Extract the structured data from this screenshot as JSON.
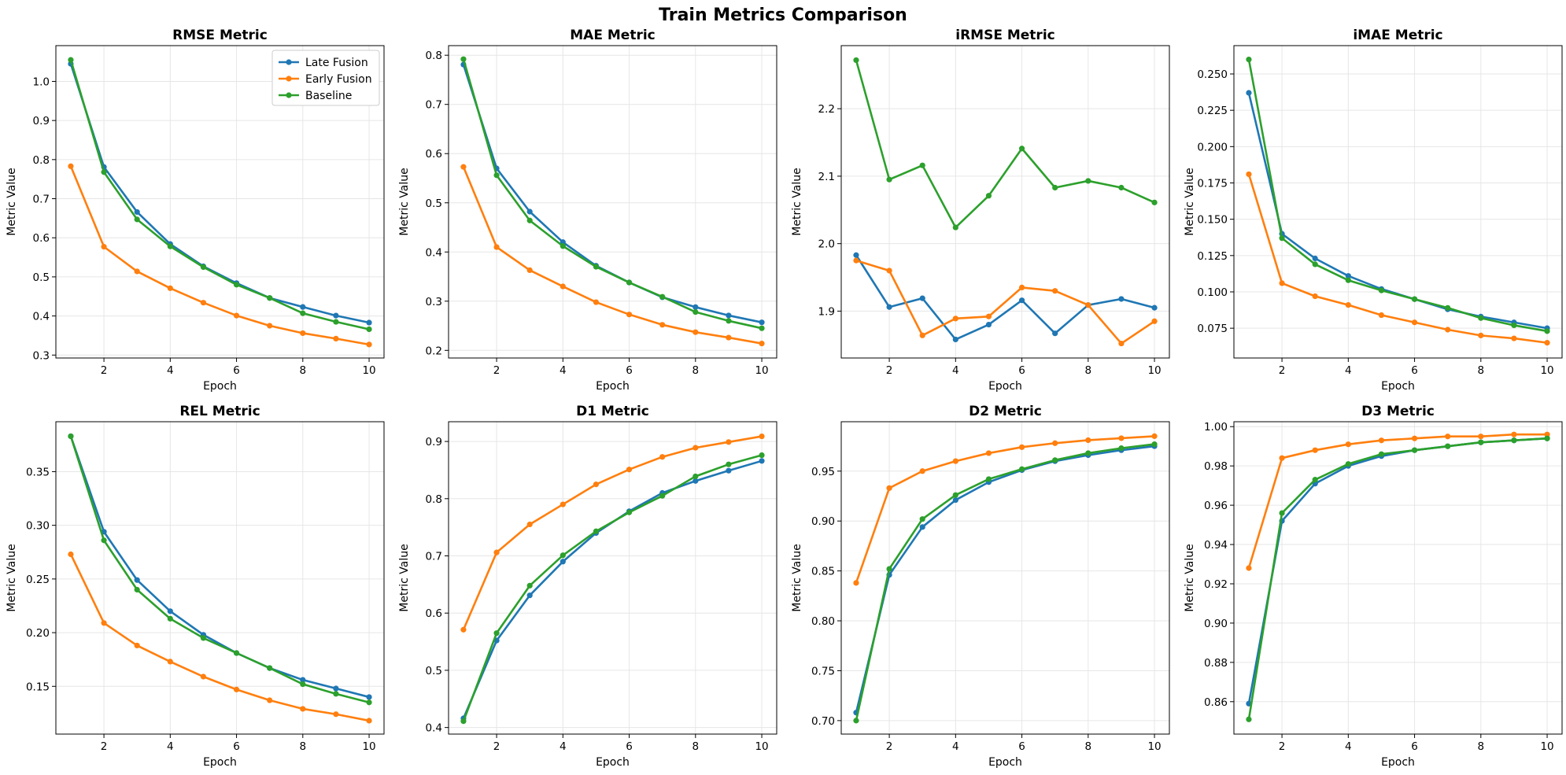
{
  "figure": {
    "title": "Train Metrics Comparison"
  },
  "legend": {
    "location": "upper right of first panel",
    "entries": [
      "Late Fusion",
      "Early Fusion",
      "Baseline"
    ]
  },
  "colors": {
    "Late Fusion": "#1f77b4",
    "Early Fusion": "#ff7f0e",
    "Baseline": "#2ca02c",
    "grid": "#e6e6e6"
  },
  "chart_data": [
    {
      "type": "line",
      "title": "RMSE Metric",
      "xlabel": "Epoch",
      "ylabel": "Metric Value",
      "x": [
        1,
        2,
        3,
        4,
        5,
        6,
        7,
        8,
        9,
        10
      ],
      "xlim": [
        0.55,
        10.45
      ],
      "xticks": [
        2,
        4,
        6,
        8,
        10
      ],
      "ylim": [
        0.2925,
        1.0915
      ],
      "yticks": [
        0.3,
        0.4,
        0.5,
        0.6,
        0.7,
        0.8,
        0.9,
        1.0
      ],
      "tick_decimals": 1,
      "grid": true,
      "series": [
        {
          "name": "Late Fusion",
          "values": [
            1.045,
            0.781,
            0.666,
            0.584,
            0.527,
            0.484,
            0.446,
            0.423,
            0.401,
            0.383
          ]
        },
        {
          "name": "Early Fusion",
          "values": [
            0.783,
            0.577,
            0.514,
            0.471,
            0.434,
            0.401,
            0.375,
            0.356,
            0.342,
            0.327
          ]
        },
        {
          "name": "Baseline",
          "values": [
            1.055,
            0.768,
            0.647,
            0.578,
            0.525,
            0.48,
            0.446,
            0.407,
            0.385,
            0.366
          ]
        }
      ]
    },
    {
      "type": "line",
      "title": "MAE Metric",
      "xlabel": "Epoch",
      "ylabel": "Metric Value",
      "x": [
        1,
        2,
        3,
        4,
        5,
        6,
        7,
        8,
        9,
        10
      ],
      "xlim": [
        0.55,
        10.45
      ],
      "xticks": [
        2,
        4,
        6,
        8,
        10
      ],
      "ylim": [
        0.1845,
        0.8195
      ],
      "yticks": [
        0.2,
        0.3,
        0.4,
        0.5,
        0.6,
        0.7,
        0.8
      ],
      "tick_decimals": 1,
      "grid": true,
      "series": [
        {
          "name": "Late Fusion",
          "values": [
            0.781,
            0.57,
            0.482,
            0.42,
            0.372,
            0.338,
            0.308,
            0.288,
            0.271,
            0.257
          ]
        },
        {
          "name": "Early Fusion",
          "values": [
            0.573,
            0.41,
            0.363,
            0.33,
            0.298,
            0.273,
            0.252,
            0.237,
            0.226,
            0.214
          ]
        },
        {
          "name": "Baseline",
          "values": [
            0.792,
            0.556,
            0.464,
            0.412,
            0.37,
            0.338,
            0.309,
            0.278,
            0.26,
            0.245
          ]
        }
      ]
    },
    {
      "type": "line",
      "title": "iRMSE Metric",
      "xlabel": "Epoch",
      "ylabel": "Metric Value",
      "x": [
        1,
        2,
        3,
        4,
        5,
        6,
        7,
        8,
        9,
        10
      ],
      "xlim": [
        0.55,
        10.45
      ],
      "xticks": [
        2,
        4,
        6,
        8,
        10
      ],
      "ylim": [
        1.8305,
        2.2935
      ],
      "yticks": [
        1.9,
        2.0,
        2.1,
        2.2
      ],
      "tick_decimals": 1,
      "grid": true,
      "series": [
        {
          "name": "Late Fusion",
          "values": [
            1.983,
            1.906,
            1.919,
            1.858,
            1.88,
            1.916,
            1.867,
            1.909,
            1.918,
            1.905
          ]
        },
        {
          "name": "Early Fusion",
          "values": [
            1.975,
            1.96,
            1.864,
            1.889,
            1.892,
            1.935,
            1.93,
            1.909,
            1.852,
            1.885
          ]
        },
        {
          "name": "Baseline",
          "values": [
            2.272,
            2.095,
            2.116,
            2.024,
            2.071,
            2.141,
            2.083,
            2.093,
            2.083,
            2.061
          ]
        }
      ]
    },
    {
      "type": "line",
      "title": "iMAE Metric",
      "xlabel": "Epoch",
      "ylabel": "Metric Value",
      "x": [
        1,
        2,
        3,
        4,
        5,
        6,
        7,
        8,
        9,
        10
      ],
      "xlim": [
        0.55,
        10.45
      ],
      "xticks": [
        2,
        4,
        6,
        8,
        10
      ],
      "ylim": [
        0.0545,
        0.2695
      ],
      "yticks": [
        0.075,
        0.1,
        0.125,
        0.15,
        0.175,
        0.2,
        0.225,
        0.25
      ],
      "tick_decimals": 3,
      "grid": true,
      "series": [
        {
          "name": "Late Fusion",
          "values": [
            0.237,
            0.14,
            0.123,
            0.111,
            0.102,
            0.095,
            0.088,
            0.083,
            0.079,
            0.075
          ]
        },
        {
          "name": "Early Fusion",
          "values": [
            0.181,
            0.106,
            0.097,
            0.091,
            0.084,
            0.079,
            0.074,
            0.07,
            0.068,
            0.065
          ]
        },
        {
          "name": "Baseline",
          "values": [
            0.26,
            0.137,
            0.119,
            0.108,
            0.101,
            0.095,
            0.089,
            0.082,
            0.077,
            0.073
          ]
        }
      ]
    },
    {
      "type": "line",
      "title": "REL Metric",
      "xlabel": "Epoch",
      "ylabel": "Metric Value",
      "x": [
        1,
        2,
        3,
        4,
        5,
        6,
        7,
        8,
        9,
        10
      ],
      "xlim": [
        0.55,
        10.45
      ],
      "xticks": [
        2,
        4,
        6,
        8,
        10
      ],
      "ylim": [
        0.1055,
        0.3965
      ],
      "yticks": [
        0.15,
        0.2,
        0.25,
        0.3,
        0.35
      ],
      "tick_decimals": 2,
      "grid": true,
      "series": [
        {
          "name": "Late Fusion",
          "values": [
            0.383,
            0.294,
            0.249,
            0.22,
            0.198,
            0.181,
            0.167,
            0.156,
            0.148,
            0.14
          ]
        },
        {
          "name": "Early Fusion",
          "values": [
            0.273,
            0.209,
            0.188,
            0.173,
            0.159,
            0.147,
            0.137,
            0.129,
            0.124,
            0.118
          ]
        },
        {
          "name": "Baseline",
          "values": [
            0.383,
            0.286,
            0.24,
            0.213,
            0.195,
            0.181,
            0.167,
            0.152,
            0.143,
            0.135
          ]
        }
      ]
    },
    {
      "type": "line",
      "title": "D1 Metric",
      "xlabel": "Epoch",
      "ylabel": "Metric Value",
      "x": [
        1,
        2,
        3,
        4,
        5,
        6,
        7,
        8,
        9,
        10
      ],
      "xlim": [
        0.55,
        10.45
      ],
      "xticks": [
        2,
        4,
        6,
        8,
        10
      ],
      "ylim": [
        0.3885,
        0.9345
      ],
      "yticks": [
        0.4,
        0.5,
        0.6,
        0.7,
        0.8,
        0.9
      ],
      "tick_decimals": 1,
      "grid": true,
      "series": [
        {
          "name": "Late Fusion",
          "values": [
            0.416,
            0.552,
            0.631,
            0.69,
            0.74,
            0.778,
            0.81,
            0.831,
            0.849,
            0.866
          ]
        },
        {
          "name": "Early Fusion",
          "values": [
            0.571,
            0.706,
            0.755,
            0.79,
            0.825,
            0.851,
            0.873,
            0.889,
            0.899,
            0.909
          ]
        },
        {
          "name": "Baseline",
          "values": [
            0.411,
            0.565,
            0.648,
            0.701,
            0.743,
            0.776,
            0.805,
            0.839,
            0.86,
            0.876
          ]
        }
      ]
    },
    {
      "type": "line",
      "title": "D2 Metric",
      "xlabel": "Epoch",
      "ylabel": "Metric Value",
      "x": [
        1,
        2,
        3,
        4,
        5,
        6,
        7,
        8,
        9,
        10
      ],
      "xlim": [
        0.55,
        10.45
      ],
      "xticks": [
        2,
        4,
        6,
        8,
        10
      ],
      "ylim": [
        0.6865,
        0.9995
      ],
      "yticks": [
        0.7,
        0.75,
        0.8,
        0.85,
        0.9,
        0.95
      ],
      "tick_decimals": 2,
      "grid": true,
      "series": [
        {
          "name": "Late Fusion",
          "values": [
            0.708,
            0.846,
            0.894,
            0.921,
            0.939,
            0.951,
            0.96,
            0.966,
            0.971,
            0.975
          ]
        },
        {
          "name": "Early Fusion",
          "values": [
            0.838,
            0.933,
            0.95,
            0.96,
            0.968,
            0.974,
            0.978,
            0.981,
            0.983,
            0.985
          ]
        },
        {
          "name": "Baseline",
          "values": [
            0.7,
            0.852,
            0.902,
            0.926,
            0.942,
            0.952,
            0.961,
            0.968,
            0.973,
            0.977
          ]
        }
      ]
    },
    {
      "type": "line",
      "title": "D3 Metric",
      "xlabel": "Epoch",
      "ylabel": "Metric Value",
      "x": [
        1,
        2,
        3,
        4,
        5,
        6,
        7,
        8,
        9,
        10
      ],
      "xlim": [
        0.55,
        10.45
      ],
      "xticks": [
        2,
        4,
        6,
        8,
        10
      ],
      "ylim": [
        0.8435,
        1.0025
      ],
      "yticks": [
        0.86,
        0.88,
        0.9,
        0.92,
        0.94,
        0.96,
        0.98,
        1.0
      ],
      "tick_decimals": 2,
      "grid": true,
      "series": [
        {
          "name": "Late Fusion",
          "values": [
            0.859,
            0.952,
            0.971,
            0.98,
            0.985,
            0.988,
            0.99,
            0.992,
            0.993,
            0.994
          ]
        },
        {
          "name": "Early Fusion",
          "values": [
            0.928,
            0.984,
            0.988,
            0.991,
            0.993,
            0.994,
            0.995,
            0.995,
            0.996,
            0.996
          ]
        },
        {
          "name": "Baseline",
          "values": [
            0.851,
            0.956,
            0.973,
            0.981,
            0.986,
            0.988,
            0.99,
            0.992,
            0.993,
            0.994
          ]
        }
      ]
    }
  ]
}
